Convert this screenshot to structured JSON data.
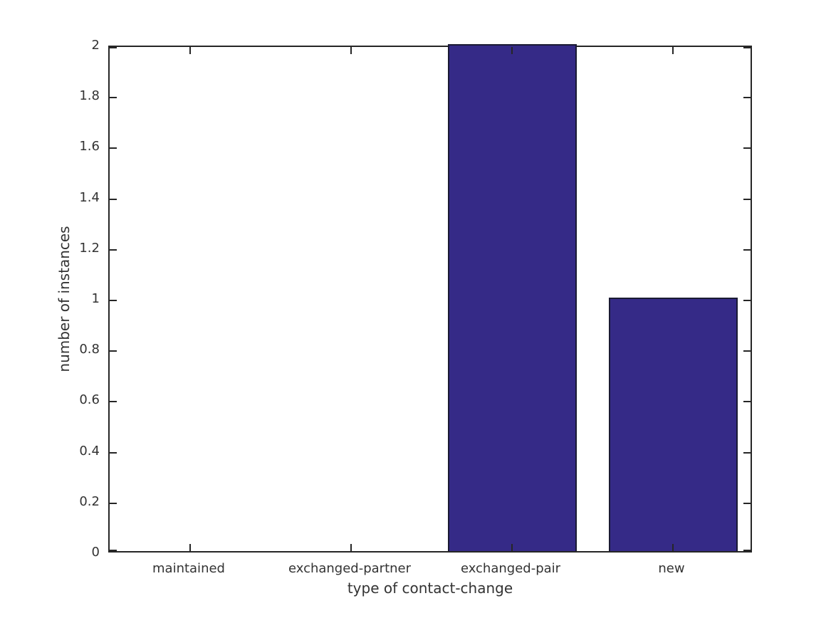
{
  "chart_data": {
    "type": "bar",
    "title": "",
    "xlabel": "type of contact-change",
    "ylabel": "number of instances",
    "categories": [
      "maintained",
      "exchanged-partner",
      "exchanged-pair",
      "new"
    ],
    "values": [
      0,
      0,
      2,
      1
    ],
    "ylim": [
      0,
      2
    ],
    "ytick_step": 0.2,
    "ytick_labels": [
      "0",
      "0.2",
      "0.4",
      "0.6",
      "0.8",
      "1",
      "1.2",
      "1.4",
      "1.6",
      "1.8",
      "2"
    ],
    "bar_width_fraction": 0.8,
    "grid": false,
    "legend": false,
    "box": true,
    "colors": {
      "bar_fill": "#352A87",
      "bar_edge": "#1a1a33",
      "axis": "#262626",
      "text": "#333333",
      "background": "#ffffff"
    }
  }
}
